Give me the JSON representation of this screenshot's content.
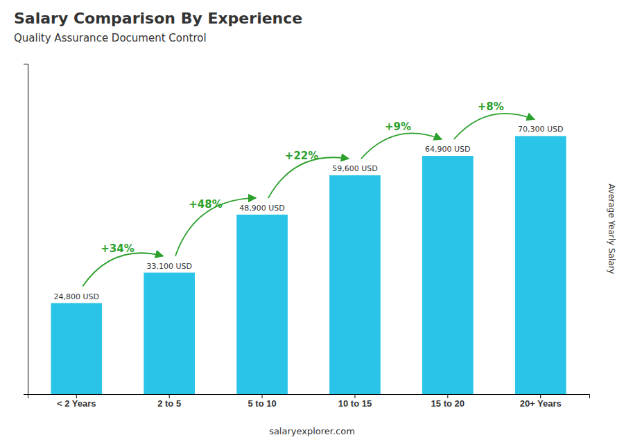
{
  "chart_data": {
    "type": "bar",
    "title": "Salary Comparison By Experience",
    "subtitle": "Quality Assurance Document Control",
    "ylabel": "Average Yearly Salary",
    "categories": [
      "< 2 Years",
      "2 to 5",
      "5 to 10",
      "10 to 15",
      "15 to 20",
      "20+ Years"
    ],
    "values": [
      24800,
      33100,
      48900,
      59600,
      64900,
      70300
    ],
    "value_labels": [
      "24,800 USD",
      "33,100 USD",
      "48,900 USD",
      "59,600 USD",
      "64,900 USD",
      "70,300 USD"
    ],
    "data_labels": true,
    "annotations": [
      "+34%",
      "+48%",
      "+22%",
      "+9%",
      "+8%"
    ],
    "source": "salaryexplorer.com",
    "color": "#29C4E8",
    "ylim": [
      0,
      90000
    ],
    "grid": false,
    "tick_labels": "x"
  }
}
